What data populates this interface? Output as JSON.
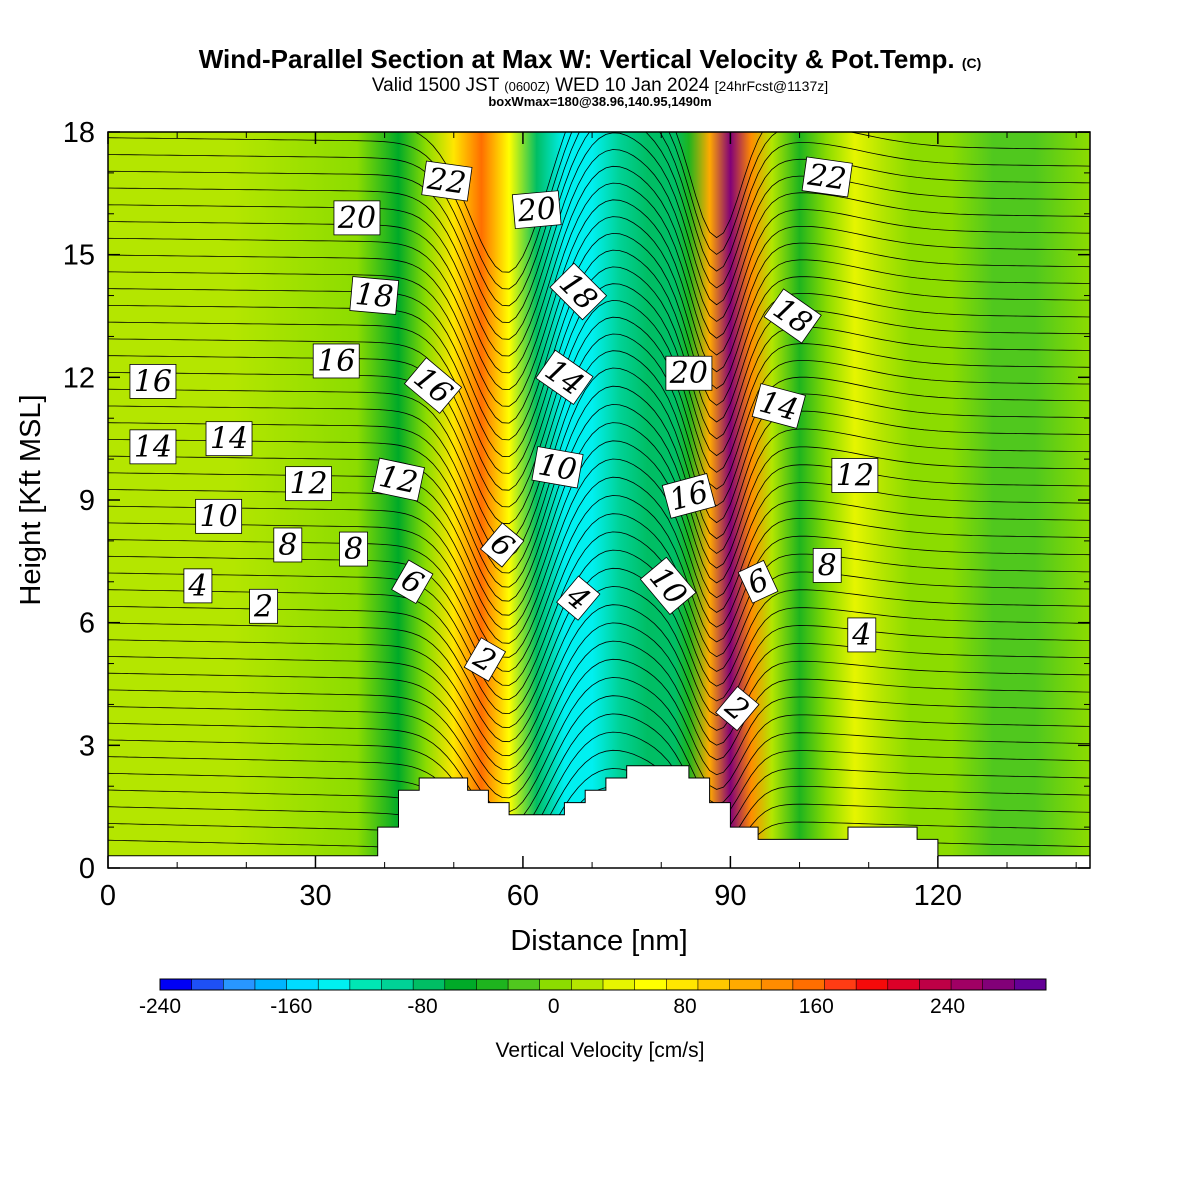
{
  "chart_data": {
    "type": "heatmap",
    "title": "Wind-Parallel Section at Max W: Vertical Velocity & Pot.Temp.",
    "title_mark": "(C)",
    "subtitle_valid": "Valid 1500 JST",
    "subtitle_utc": "(0600Z)",
    "subtitle_date": "WED 10 Jan 2024",
    "subtitle_fcst": "[24hrFcst@1137z]",
    "subtitle_box": "boxWmax=180@38.96,140.95,1490m",
    "xlabel": "Distance [nm]",
    "ylabel": "Height [Kft MSL]",
    "xlim": [
      0,
      142
    ],
    "ylim": [
      0,
      18
    ],
    "x_ticks": [
      0,
      30,
      60,
      90,
      120
    ],
    "y_ticks": [
      0,
      3,
      6,
      9,
      12,
      15,
      18
    ],
    "colorbar": {
      "label": "Vertical Velocity [cm/s]",
      "range": [
        -240,
        300
      ],
      "step": 20,
      "tick_values": [
        -240,
        -160,
        -80,
        0,
        80,
        160,
        240
      ],
      "colors": [
        "#0000f5",
        "#1e50f5",
        "#2896ff",
        "#00b4ff",
        "#00dcff",
        "#00f0f0",
        "#00e6b4",
        "#00d296",
        "#00be64",
        "#00aa28",
        "#1eb41e",
        "#50c81e",
        "#8cdc00",
        "#b4e600",
        "#e6f500",
        "#ffff00",
        "#ffe600",
        "#ffc800",
        "#ffaa00",
        "#ff8c00",
        "#ff6e00",
        "#ff3c14",
        "#f50a0a",
        "#dc0028",
        "#be0046",
        "#a00064",
        "#820078",
        "#640096"
      ]
    },
    "columns": [
      {
        "x": 0,
        "w": 20
      },
      {
        "x": 18,
        "w": 20
      },
      {
        "x": 36,
        "w": 0
      },
      {
        "x": 42,
        "w": -60
      },
      {
        "x": 46,
        "w": 0
      },
      {
        "x": 50,
        "w": 90
      },
      {
        "x": 54,
        "w": 160
      },
      {
        "x": 58,
        "w": 70
      },
      {
        "x": 62,
        "w": -80
      },
      {
        "x": 66,
        "w": -130
      },
      {
        "x": 70,
        "w": -130
      },
      {
        "x": 74,
        "w": -100
      },
      {
        "x": 78,
        "w": -80
      },
      {
        "x": 82,
        "w": -70
      },
      {
        "x": 84,
        "w": -40
      },
      {
        "x": 87,
        "w": 130
      },
      {
        "x": 90,
        "w": 280
      },
      {
        "x": 93,
        "w": 140
      },
      {
        "x": 96,
        "w": 30
      },
      {
        "x": 100,
        "w": -30
      },
      {
        "x": 104,
        "w": 0
      },
      {
        "x": 108,
        "w": 40
      },
      {
        "x": 112,
        "w": 20
      },
      {
        "x": 116,
        "w": 10
      },
      {
        "x": 122,
        "w": 0
      },
      {
        "x": 128,
        "w": -10
      },
      {
        "x": 134,
        "w": -20
      },
      {
        "x": 142,
        "w": 0
      }
    ],
    "terrain": [
      [
        0,
        0.3
      ],
      [
        39,
        0.3
      ],
      [
        39,
        1.0
      ],
      [
        42,
        1.0
      ],
      [
        42,
        1.9
      ],
      [
        45,
        1.9
      ],
      [
        45,
        2.2
      ],
      [
        52,
        2.2
      ],
      [
        52,
        1.9
      ],
      [
        55,
        1.9
      ],
      [
        55,
        1.6
      ],
      [
        58,
        1.6
      ],
      [
        58,
        1.3
      ],
      [
        66,
        1.3
      ],
      [
        66,
        1.6
      ],
      [
        69,
        1.6
      ],
      [
        69,
        1.9
      ],
      [
        72,
        1.9
      ],
      [
        72,
        2.2
      ],
      [
        75,
        2.2
      ],
      [
        75,
        2.5
      ],
      [
        84,
        2.5
      ],
      [
        84,
        2.2
      ],
      [
        87,
        2.2
      ],
      [
        87,
        1.6
      ],
      [
        90,
        1.6
      ],
      [
        90,
        1.0
      ],
      [
        94,
        1.0
      ],
      [
        94,
        0.7
      ],
      [
        107,
        0.7
      ],
      [
        107,
        1.0
      ],
      [
        117,
        1.0
      ],
      [
        117,
        0.7
      ],
      [
        120,
        0.7
      ],
      [
        120,
        0.3
      ],
      [
        142,
        0.3
      ]
    ],
    "theta_labels": [
      {
        "x": 49,
        "y": 16.8,
        "text": "22",
        "rot": 8
      },
      {
        "x": 104,
        "y": 16.9,
        "text": "22",
        "rot": 8
      },
      {
        "x": 36,
        "y": 15.9,
        "text": "20",
        "rot": 0
      },
      {
        "x": 62,
        "y": 16.1,
        "text": "20",
        "rot": -5
      },
      {
        "x": 38.5,
        "y": 14.0,
        "text": "18",
        "rot": 5
      },
      {
        "x": 68,
        "y": 14.1,
        "text": "18",
        "rot": 45
      },
      {
        "x": 99,
        "y": 13.5,
        "text": "18",
        "rot": 35
      },
      {
        "x": 33,
        "y": 12.4,
        "text": "16",
        "rot": 0
      },
      {
        "x": 47,
        "y": 11.8,
        "text": "16",
        "rot": 40
      },
      {
        "x": 6.5,
        "y": 11.9,
        "text": "16",
        "rot": 0
      },
      {
        "x": 84,
        "y": 12.1,
        "text": "20",
        "rot": 0
      },
      {
        "x": 66,
        "y": 12.0,
        "text": "14",
        "rot": 35
      },
      {
        "x": 97,
        "y": 11.3,
        "text": "14",
        "rot": 15
      },
      {
        "x": 6.5,
        "y": 10.3,
        "text": "14",
        "rot": 0
      },
      {
        "x": 17.5,
        "y": 10.5,
        "text": "14",
        "rot": 0
      },
      {
        "x": 65,
        "y": 9.8,
        "text": "10",
        "rot": 10
      },
      {
        "x": 29,
        "y": 9.4,
        "text": "12",
        "rot": 0
      },
      {
        "x": 42,
        "y": 9.5,
        "text": "12",
        "rot": 12
      },
      {
        "x": 108,
        "y": 9.6,
        "text": "12",
        "rot": 0
      },
      {
        "x": 84,
        "y": 9.1,
        "text": "16",
        "rot": -15
      },
      {
        "x": 16,
        "y": 8.6,
        "text": "10",
        "rot": 0
      },
      {
        "x": 26,
        "y": 7.9,
        "text": "8",
        "rot": 0
      },
      {
        "x": 35.5,
        "y": 7.8,
        "text": "8",
        "rot": 0
      },
      {
        "x": 57,
        "y": 7.9,
        "text": "6",
        "rot": 40
      },
      {
        "x": 104,
        "y": 7.4,
        "text": "8",
        "rot": 0
      },
      {
        "x": 13,
        "y": 6.9,
        "text": "4",
        "rot": 0
      },
      {
        "x": 44,
        "y": 7.0,
        "text": "6",
        "rot": 30
      },
      {
        "x": 94,
        "y": 7.0,
        "text": "6",
        "rot": -25
      },
      {
        "x": 81,
        "y": 6.9,
        "text": "10",
        "rot": 50
      },
      {
        "x": 68,
        "y": 6.6,
        "text": "4",
        "rot": 40
      },
      {
        "x": 22.5,
        "y": 6.4,
        "text": "2",
        "rot": 0
      },
      {
        "x": 109,
        "y": 5.7,
        "text": "4",
        "rot": 0
      },
      {
        "x": 54.5,
        "y": 5.1,
        "text": "2",
        "rot": 30
      },
      {
        "x": 91,
        "y": 3.9,
        "text": "2",
        "rot": 40
      }
    ]
  }
}
